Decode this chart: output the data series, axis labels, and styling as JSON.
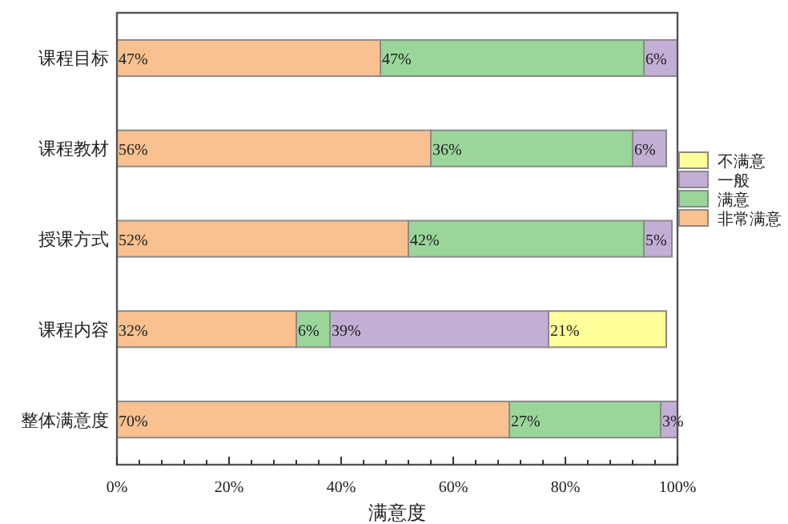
{
  "chart_data": {
    "type": "bar",
    "orientation": "horizontal",
    "stacked": true,
    "categories": [
      "课程目标",
      "课程教材",
      "授课方式",
      "课程内容",
      "整体满意度"
    ],
    "series": [
      {
        "name": "非常满意",
        "color": "#f9c18f",
        "values": [
          47,
          56,
          52,
          32,
          70
        ],
        "value_labels": [
          "47%",
          "56%",
          "52%",
          "32%",
          "70%"
        ]
      },
      {
        "name": "满意",
        "color": "#9ad69a",
        "values": [
          47,
          36,
          42,
          6,
          27
        ],
        "value_labels": [
          "47%",
          "36%",
          "42%",
          "6%",
          "27%"
        ]
      },
      {
        "name": "一般",
        "color": "#c3aed6",
        "values": [
          6,
          6,
          5,
          39,
          3
        ],
        "value_labels": [
          "6%",
          "6%",
          "5%",
          "39%",
          "3%"
        ]
      },
      {
        "name": "不满意",
        "color": "#ffff99",
        "values": [
          null,
          null,
          null,
          21,
          null
        ],
        "value_labels": [
          null,
          null,
          null,
          "21%",
          null
        ]
      }
    ],
    "xlim": [
      0,
      100
    ],
    "xticks": [
      {
        "value": 0,
        "label": "0%"
      },
      {
        "value": 20,
        "label": "20%"
      },
      {
        "value": 40,
        "label": "40%"
      },
      {
        "value": 60,
        "label": "60%"
      },
      {
        "value": 80,
        "label": "80%"
      },
      {
        "value": 100,
        "label": "100%"
      }
    ],
    "xlabel": "满意度",
    "legend": "right",
    "grid": false
  }
}
